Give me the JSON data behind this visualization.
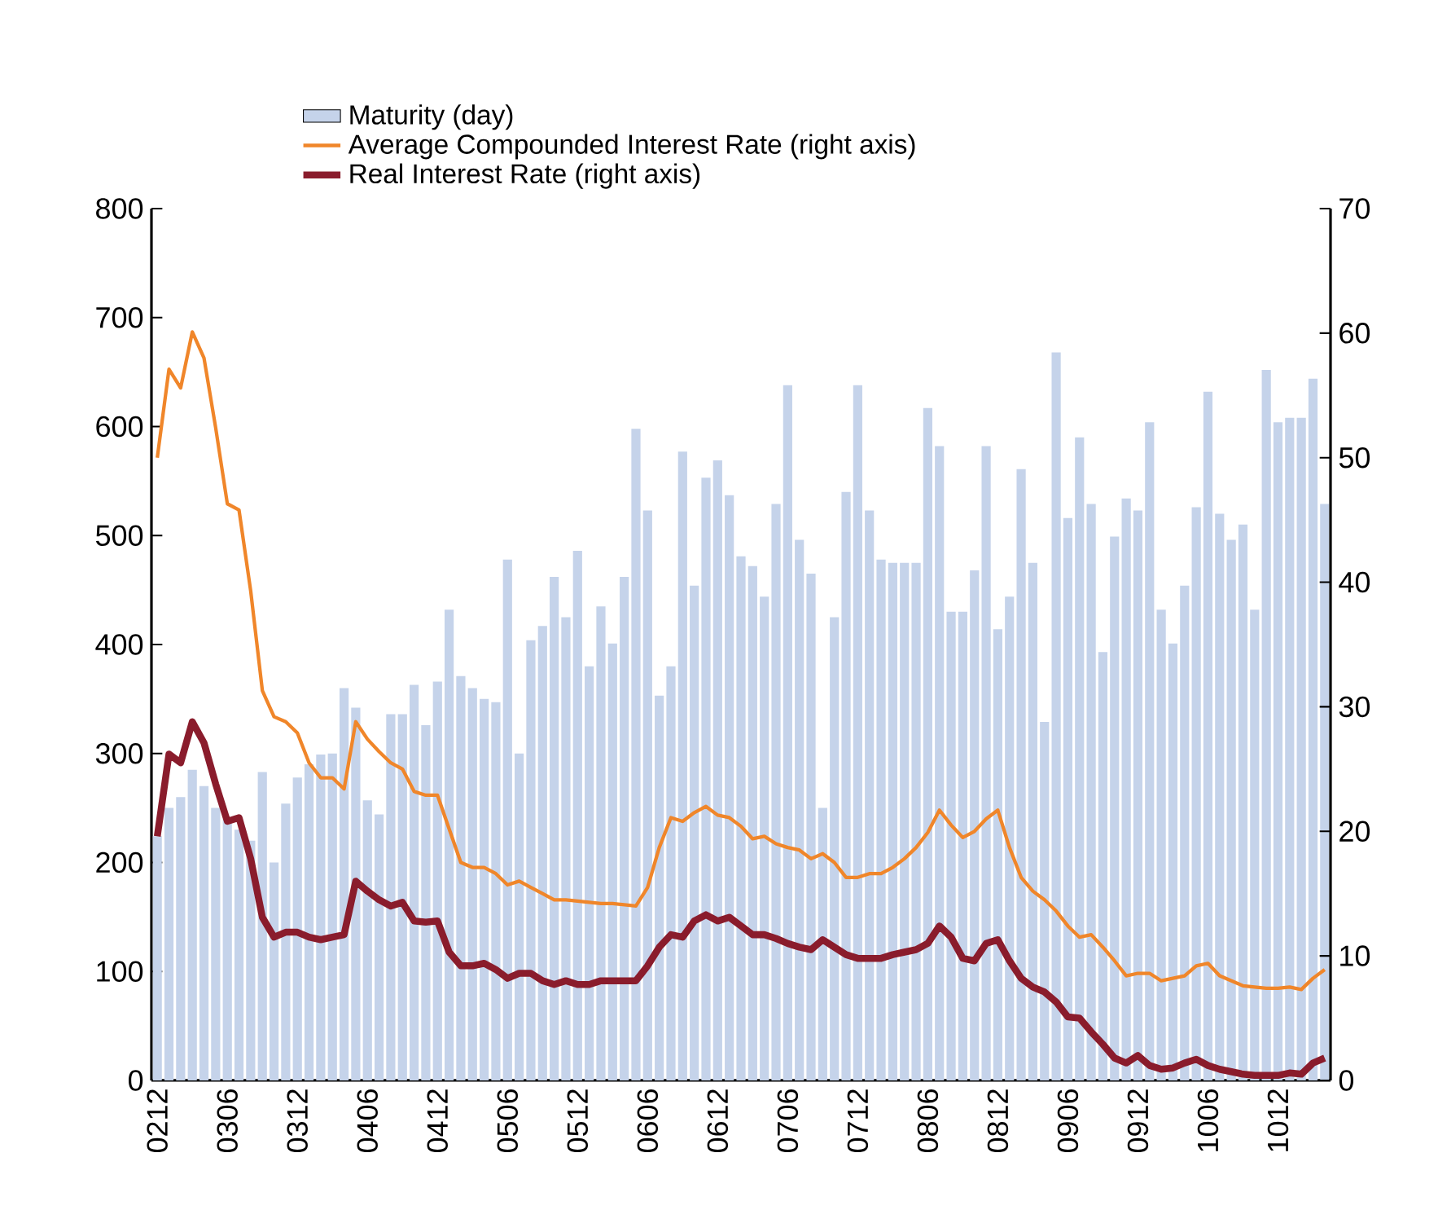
{
  "chart_data": {
    "type": "bar",
    "categories": [
      "0212",
      null,
      null,
      null,
      null,
      null,
      "0306",
      null,
      null,
      null,
      null,
      null,
      "0312",
      null,
      null,
      null,
      null,
      null,
      "0406",
      null,
      null,
      null,
      null,
      null,
      "0412",
      null,
      null,
      null,
      null,
      null,
      "0506",
      null,
      null,
      null,
      null,
      null,
      "0512",
      null,
      null,
      null,
      null,
      null,
      "0606",
      null,
      null,
      null,
      null,
      null,
      "0612",
      null,
      null,
      null,
      null,
      null,
      "0706",
      null,
      null,
      null,
      null,
      null,
      "0712",
      null,
      null,
      null,
      null,
      null,
      "0806",
      null,
      null,
      null,
      null,
      null,
      "0812",
      null,
      null,
      null,
      null,
      null,
      "0906",
      null,
      null,
      null,
      null,
      null,
      "0912",
      null,
      null,
      null,
      null,
      null,
      "1006",
      null,
      null,
      null,
      null,
      null,
      "1012",
      null,
      null,
      null,
      null
    ],
    "series": [
      {
        "name": "Maturity (day)",
        "color": "#c5d3ea",
        "values": [
          224,
          250,
          260,
          285,
          270,
          250,
          240,
          230,
          220,
          283,
          200,
          254,
          278,
          290,
          299,
          300,
          360,
          342,
          257,
          244,
          336,
          336,
          363,
          326,
          366,
          432,
          371,
          360,
          350,
          347,
          478,
          300,
          404,
          417,
          462,
          425,
          486,
          380,
          435,
          401,
          462,
          598,
          523,
          353,
          380,
          577,
          454,
          553,
          569,
          537,
          481,
          472,
          444,
          529,
          638,
          496,
          465,
          250,
          425,
          540,
          638,
          523,
          478,
          475,
          475,
          475,
          617,
          582,
          430,
          430,
          468,
          582,
          414,
          444,
          561,
          475,
          329,
          668,
          516,
          590,
          529,
          393,
          499,
          534,
          523,
          604,
          432,
          401,
          454,
          526,
          632,
          520,
          496,
          510,
          432,
          652,
          604,
          608,
          608,
          644,
          529
        ]
      },
      {
        "name": "Average Compounded Interest Rate (right axis)",
        "type": "line",
        "axis": "y2",
        "color": "#f0862a",
        "values": [
          50.0,
          57.1,
          55.6,
          60.1,
          58.0,
          52.4,
          46.3,
          45.8,
          39.3,
          31.3,
          29.2,
          28.8,
          27.9,
          25.5,
          24.3,
          24.3,
          23.4,
          28.8,
          27.4,
          26.4,
          25.5,
          25.0,
          23.2,
          22.9,
          22.9,
          20.2,
          17.5,
          17.1,
          17.1,
          16.6,
          15.7,
          16.0,
          15.5,
          15.0,
          14.5,
          14.5,
          14.4,
          14.3,
          14.2,
          14.2,
          14.1,
          14.0,
          15.5,
          18.7,
          21.1,
          20.8,
          21.5,
          22.0,
          21.3,
          21.1,
          20.4,
          19.4,
          19.6,
          19.0,
          18.7,
          18.5,
          17.8,
          18.2,
          17.5,
          16.3,
          16.3,
          16.6,
          16.6,
          17.1,
          17.8,
          18.7,
          19.9,
          21.7,
          20.5,
          19.5,
          20.0,
          21.0,
          21.7,
          18.7,
          16.3,
          15.2,
          14.5,
          13.6,
          12.4,
          11.5,
          11.7,
          10.7,
          9.6,
          8.4,
          8.6,
          8.6,
          8.0,
          8.2,
          8.4,
          9.2,
          9.4,
          8.4,
          8.0,
          7.6,
          7.5,
          7.4,
          7.4,
          7.5,
          7.3,
          8.2,
          8.9
        ]
      },
      {
        "name": "Real Interest Rate (right axis)",
        "type": "line",
        "axis": "y2",
        "color": "#8a1c2c",
        "values": [
          19.6,
          26.2,
          25.5,
          28.8,
          27.1,
          23.8,
          20.8,
          21.1,
          17.8,
          13.1,
          11.5,
          11.9,
          11.9,
          11.5,
          11.3,
          11.5,
          11.7,
          16.0,
          15.2,
          14.5,
          14.0,
          14.3,
          12.8,
          12.7,
          12.8,
          10.3,
          9.2,
          9.2,
          9.4,
          8.9,
          8.2,
          8.6,
          8.6,
          8.0,
          7.7,
          8.0,
          7.7,
          7.7,
          8.0,
          8.0,
          8.0,
          8.0,
          9.2,
          10.7,
          11.7,
          11.5,
          12.8,
          13.3,
          12.8,
          13.1,
          12.4,
          11.7,
          11.7,
          11.4,
          11.0,
          10.7,
          10.5,
          11.3,
          10.7,
          10.1,
          9.8,
          9.8,
          9.8,
          10.1,
          10.3,
          10.5,
          11.0,
          12.4,
          11.5,
          9.8,
          9.6,
          11.0,
          11.3,
          9.6,
          8.2,
          7.5,
          7.1,
          6.3,
          5.1,
          5.0,
          3.9,
          2.9,
          1.8,
          1.4,
          2.0,
          1.2,
          0.9,
          1.0,
          1.4,
          1.7,
          1.2,
          0.9,
          0.7,
          0.5,
          0.4,
          0.4,
          0.4,
          0.6,
          0.5,
          1.4,
          1.8
        ]
      }
    ],
    "ylim": [
      0,
      800
    ],
    "yticks": [
      0,
      100,
      200,
      300,
      400,
      500,
      600,
      700,
      800
    ],
    "y2lim": [
      0,
      70
    ],
    "y2ticks": [
      0,
      10,
      20,
      30,
      40,
      50,
      60,
      70
    ],
    "legend": "top"
  }
}
